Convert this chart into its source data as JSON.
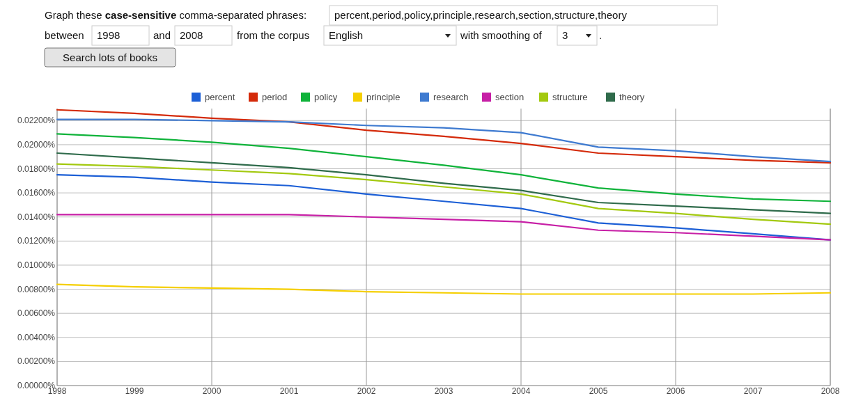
{
  "chart_data": {
    "type": "line",
    "annotations": [
      "Graph these",
      "case-sensitive",
      "comma-separated phrases:",
      "percent,period,policy,principle,research,section,structure,theory",
      "between",
      "1998",
      "and",
      "2008",
      "from the corpus",
      "English",
      "with smoothing of",
      "3",
      ".",
      "Search lots of books"
    ],
    "x": [
      1998,
      1999,
      2000,
      2001,
      2002,
      2003,
      2004,
      2005,
      2006,
      2007,
      2008
    ],
    "xlim": [
      1998,
      2008
    ],
    "xticks": [
      1998,
      1999,
      2000,
      2001,
      2002,
      2003,
      2004,
      2005,
      2006,
      2007,
      2008
    ],
    "ylim": [
      0,
      0.023
    ],
    "yticks": [
      {
        "value": 0,
        "label": "0.00000%"
      },
      {
        "value": 0.002,
        "label": "0.00200%"
      },
      {
        "value": 0.004,
        "label": "0.00400%"
      },
      {
        "value": 0.006,
        "label": "0.00600%"
      },
      {
        "value": 0.008,
        "label": "0.00800%"
      },
      {
        "value": 0.01,
        "label": "0.01000%"
      },
      {
        "value": 0.012,
        "label": "0.01200%"
      },
      {
        "value": 0.014,
        "label": "0.01400%"
      },
      {
        "value": 0.016,
        "label": "0.01600%"
      },
      {
        "value": 0.018,
        "label": "0.01800%"
      },
      {
        "value": 0.02,
        "label": "0.02000%"
      },
      {
        "value": 0.022,
        "label": "0.02200%"
      }
    ],
    "grid": true,
    "legend": "top",
    "marker": "none",
    "line_style": "solid",
    "series": [
      {
        "name": "percent",
        "color": "#1c5fd6",
        "values": [
          0.0175,
          0.0173,
          0.0169,
          0.0166,
          0.0159,
          0.0153,
          0.0147,
          0.0135,
          0.0131,
          0.0126,
          0.0121
        ]
      },
      {
        "name": "period",
        "color": "#d42a0a",
        "values": [
          0.0229,
          0.0226,
          0.0222,
          0.0219,
          0.0212,
          0.0207,
          0.0201,
          0.0193,
          0.019,
          0.0187,
          0.0185
        ]
      },
      {
        "name": "policy",
        "color": "#0fb33a",
        "values": [
          0.0209,
          0.0206,
          0.0202,
          0.0197,
          0.019,
          0.0183,
          0.0175,
          0.0164,
          0.0159,
          0.0155,
          0.0153
        ]
      },
      {
        "name": "principle",
        "color": "#f5cf00",
        "values": [
          0.0084,
          0.0082,
          0.0081,
          0.008,
          0.0078,
          0.0077,
          0.0076,
          0.0076,
          0.0076,
          0.0076,
          0.0077
        ]
      },
      {
        "name": "research",
        "color": "#3e7ad0",
        "values": [
          0.0221,
          0.0221,
          0.022,
          0.0219,
          0.0216,
          0.0214,
          0.021,
          0.0198,
          0.0195,
          0.019,
          0.0186
        ]
      },
      {
        "name": "section",
        "color": "#c71fa6",
        "values": [
          0.0142,
          0.0142,
          0.0142,
          0.0142,
          0.014,
          0.0138,
          0.0136,
          0.0129,
          0.0127,
          0.0124,
          0.0121
        ]
      },
      {
        "name": "structure",
        "color": "#a3c90f",
        "values": [
          0.0184,
          0.0182,
          0.0179,
          0.0176,
          0.0171,
          0.0165,
          0.0159,
          0.0147,
          0.0143,
          0.0138,
          0.0134
        ]
      },
      {
        "name": "theory",
        "color": "#2f6b4b",
        "values": [
          0.0193,
          0.0189,
          0.0185,
          0.0181,
          0.0175,
          0.0168,
          0.0162,
          0.0152,
          0.0149,
          0.0146,
          0.0143
        ]
      }
    ]
  }
}
